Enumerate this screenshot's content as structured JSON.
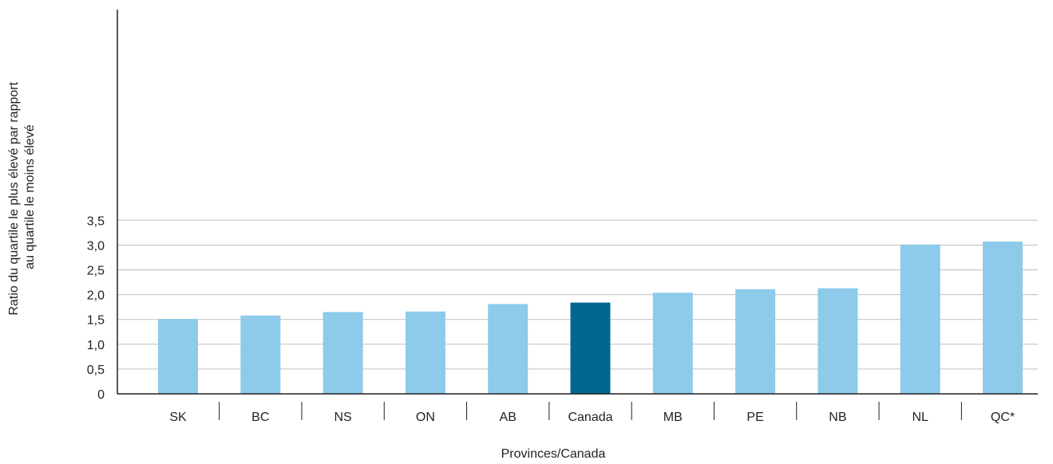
{
  "chart_data": {
    "type": "bar",
    "title": "",
    "xlabel": "Provinces/Canada",
    "ylabel_lines": [
      "Ratio du quartile le plus élevé par rapport",
      "au quartile le moins élevé"
    ],
    "categories": [
      "SK",
      "BC",
      "NS",
      "ON",
      "AB",
      "Canada",
      "MB",
      "PE",
      "NB",
      "NL",
      "QC*"
    ],
    "values": [
      1.51,
      1.58,
      1.65,
      1.66,
      1.81,
      1.84,
      2.04,
      2.11,
      2.13,
      3.01,
      3.07
    ],
    "highlight_category": "Canada",
    "ylim": [
      0,
      3.5
    ],
    "yticks": [
      0,
      0.5,
      1.0,
      1.5,
      2.0,
      2.5,
      3.0,
      3.5
    ],
    "ytick_labels": [
      "0",
      "0,5",
      "1,0",
      "1,5",
      "2,0",
      "2,5",
      "3,0",
      "3,5"
    ],
    "grid": true,
    "colors": {
      "bar": "#8ecae9",
      "highlight": "#006890",
      "grid": "#bfbfbf",
      "axis": "#231f20"
    }
  }
}
